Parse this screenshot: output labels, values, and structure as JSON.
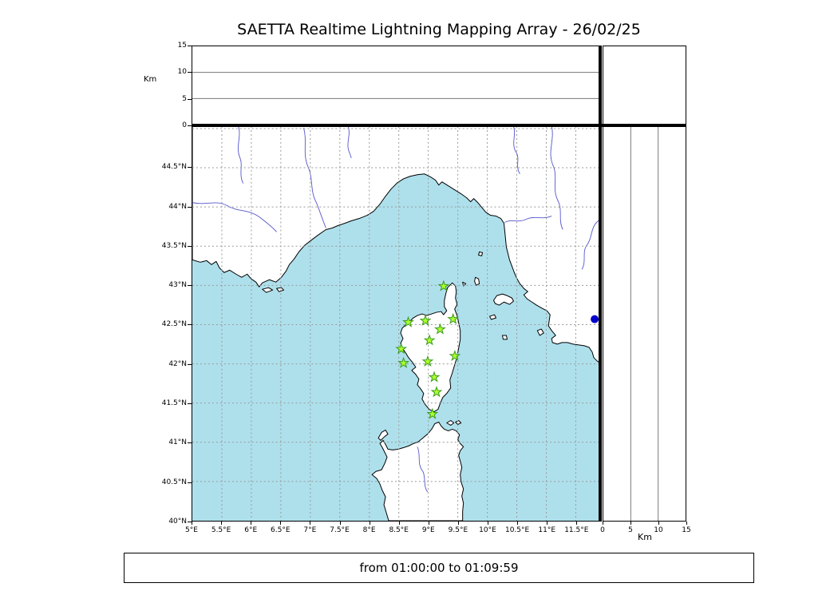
{
  "title": "SAETTA Realtime Lightning Mapping Array - 26/02/25",
  "status_text": "from 01:00:00 to 01:09:59",
  "colors": {
    "sea": "#aee0ec",
    "land": "#ffffff",
    "coast": "#000000",
    "river": "#5656cd",
    "map_grid": "#999999",
    "panel_grid": "#777777",
    "station_fill": "#adff2f",
    "station_stroke": "#3a9b1c",
    "detection": "#0000cd"
  },
  "chart_data": {
    "type": "map-with-altitude-panels",
    "map": {
      "lon_axis": {
        "min": 5,
        "max": 11.9,
        "tick_values": [
          5,
          5.5,
          6,
          6.5,
          7,
          7.5,
          8,
          8.5,
          9,
          9.5,
          10,
          10.5,
          11,
          11.5
        ],
        "tick_labels": [
          "5°E",
          "5.5°E",
          "6°E",
          "6.5°E",
          "7°E",
          "7.5°E",
          "8°E",
          "8.5°E",
          "9°E",
          "9.5°E",
          "10°E",
          "10.5°E",
          "11°E",
          "11.5°E"
        ]
      },
      "lat_axis": {
        "min": 40,
        "max": 45.03,
        "tick_values": [
          40,
          40.5,
          41,
          41.5,
          42,
          42.5,
          43,
          43.5,
          44,
          44.5
        ],
        "tick_labels": [
          "40°N",
          "40.5°N",
          "41°N",
          "41.5°N",
          "42°N",
          "42.5°N",
          "43°N",
          "43.5°N",
          "44°N",
          "44.5°N"
        ]
      },
      "grid_lons": [
        5.5,
        6,
        6.5,
        7,
        7.5,
        8,
        8.5,
        9,
        9.5,
        10,
        10.5,
        11,
        11.5
      ],
      "grid_lats": [
        40.5,
        41,
        41.5,
        42,
        42.5,
        43,
        43.5,
        44,
        44.5,
        45
      ]
    },
    "alt_axis": {
      "min": 0,
      "max": 15,
      "tick_values": [
        0,
        5,
        10,
        15
      ],
      "tick_labels": [
        "0",
        "5",
        "10",
        "15"
      ],
      "gridlines": [
        5,
        10
      ],
      "unit": "Km"
    },
    "stations": [
      {
        "lon": 9.26,
        "lat": 42.99
      },
      {
        "lon": 8.66,
        "lat": 42.53
      },
      {
        "lon": 8.95,
        "lat": 42.55
      },
      {
        "lon": 9.42,
        "lat": 42.57
      },
      {
        "lon": 9.2,
        "lat": 42.44
      },
      {
        "lon": 9.02,
        "lat": 42.3
      },
      {
        "lon": 8.54,
        "lat": 42.19
      },
      {
        "lon": 9.45,
        "lat": 42.1
      },
      {
        "lon": 8.58,
        "lat": 42.01
      },
      {
        "lon": 8.99,
        "lat": 42.03
      },
      {
        "lon": 9.1,
        "lat": 41.83
      },
      {
        "lon": 9.14,
        "lat": 41.64
      },
      {
        "lon": 9.07,
        "lat": 41.36
      }
    ],
    "detections": [
      {
        "lon": 11.82,
        "lat": 42.57
      }
    ]
  }
}
